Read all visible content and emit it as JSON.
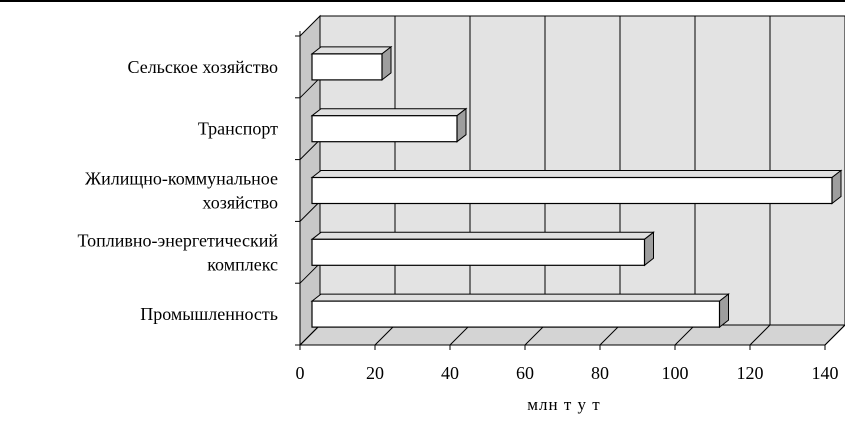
{
  "chart_data": {
    "type": "bar",
    "orientation": "horizontal",
    "style": "3d",
    "title": "",
    "xlabel": "млн т у т",
    "ylabel": "",
    "xlim": [
      0,
      140
    ],
    "x_ticks": [
      "0",
      "20",
      "40",
      "60",
      "80",
      "100",
      "120",
      "140"
    ],
    "grid": true,
    "legend": "none",
    "categories": [
      [
        "Сельское хозяйство"
      ],
      [
        "Транспорт"
      ],
      [
        "Жилищно-коммунальное",
        "хозяйство"
      ],
      [
        "Топливно-энергетический",
        "комплекс"
      ],
      [
        "Промышленность"
      ]
    ],
    "values": [
      20,
      40,
      140,
      90,
      110
    ],
    "colors": {
      "bar_face": "#ffffff",
      "bar_side": "#9e9e9e",
      "bar_top": "#e0e0e0",
      "back_wall": "#e3e3e3",
      "side_wall": "#c8c8c8",
      "floor": "#d4d4d4",
      "grid": "#000000"
    }
  }
}
